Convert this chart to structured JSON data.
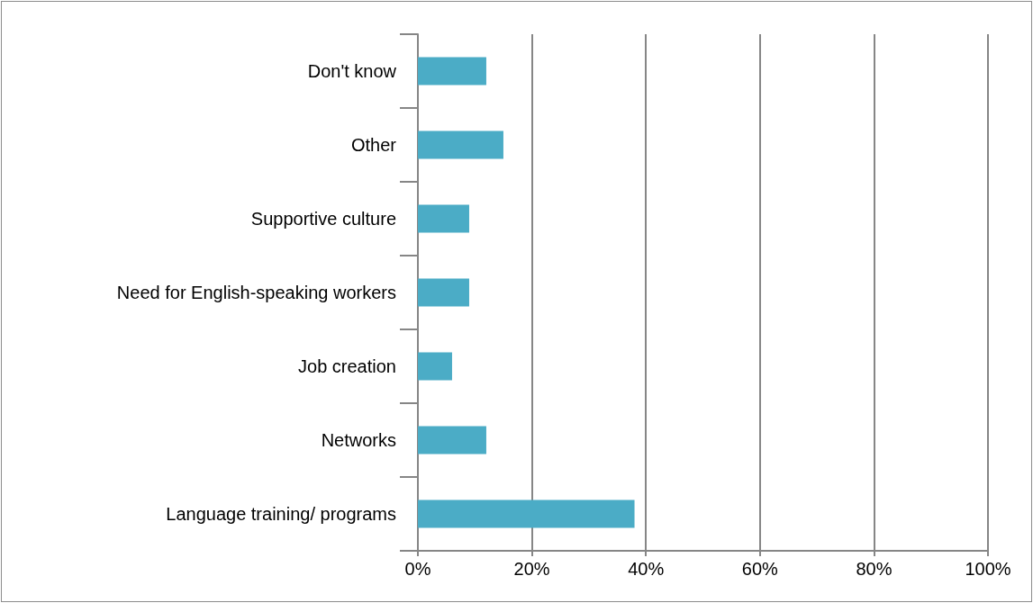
{
  "chart_data": {
    "type": "bar",
    "orientation": "horizontal",
    "categories": [
      "Don't know",
      "Other",
      "Supportive culture",
      "Need for English-speaking workers",
      "Job creation",
      "Networks",
      "Language training/ programs"
    ],
    "values": [
      12,
      15,
      9,
      9,
      6,
      12,
      38
    ],
    "color": "#4bacc6",
    "xlim": [
      0,
      100
    ],
    "xticks": [
      {
        "value": 0,
        "label": "0%"
      },
      {
        "value": 20,
        "label": "20%"
      },
      {
        "value": 40,
        "label": "40%"
      },
      {
        "value": 60,
        "label": "60%"
      },
      {
        "value": 80,
        "label": "80%"
      },
      {
        "value": 100,
        "label": "100%"
      }
    ],
    "grid": "x"
  }
}
